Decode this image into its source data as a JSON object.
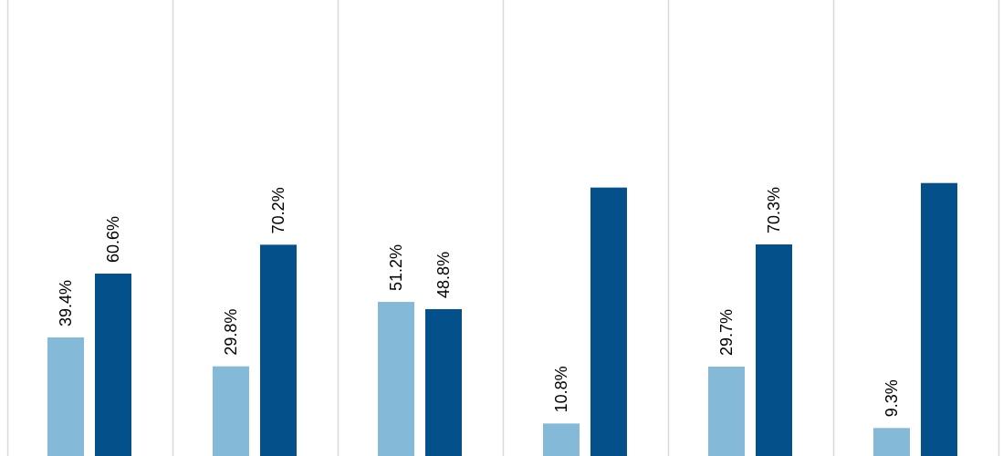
{
  "chart_data": {
    "type": "bar",
    "title": "",
    "xlabel": "",
    "ylabel": "",
    "ylim": [
      0,
      100
    ],
    "grid": "vertical-category-separators",
    "legend": "none",
    "categories": [
      "",
      "",
      "",
      "",
      "",
      ""
    ],
    "series": [
      {
        "color": "#84b9d7",
        "values": [
          39.4,
          29.8,
          51.2,
          10.8,
          29.7,
          9.3
        ],
        "labels": [
          "39.4%",
          "29.8%",
          "51.2%",
          "10.8%",
          "29.7%",
          "9.3%"
        ]
      },
      {
        "color": "#03508a",
        "values": [
          60.6,
          70.2,
          48.8,
          89.2,
          70.3,
          90.7
        ],
        "labels": [
          "60.6%",
          "70.2%",
          "48.8%",
          "",
          "70.3%",
          ""
        ]
      }
    ]
  },
  "colors": {
    "background": "#ffffff",
    "gridline": "#d9d9d9",
    "label_text": "#000000"
  }
}
